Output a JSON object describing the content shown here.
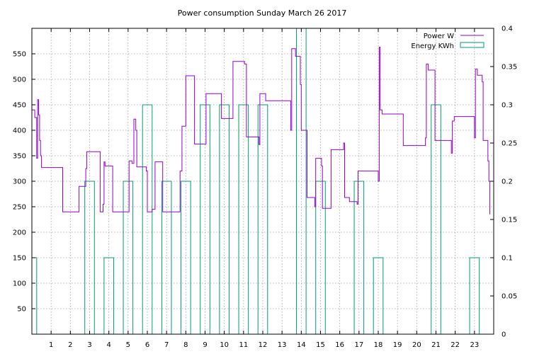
{
  "chart_data": {
    "type": "line",
    "title": "Power consumption Sunday March 26 2017",
    "xlabel": "",
    "ylabel": "",
    "xlim": [
      0,
      24
    ],
    "ylim": [
      0,
      600
    ],
    "y2lim": [
      0,
      0.4
    ],
    "grid": true,
    "legend_position": "top-right",
    "x_ticks": [
      1,
      2,
      3,
      4,
      5,
      6,
      7,
      8,
      9,
      10,
      11,
      12,
      13,
      14,
      15,
      16,
      17,
      18,
      19,
      20,
      21,
      22,
      23
    ],
    "y_ticks": [
      50,
      100,
      150,
      200,
      250,
      300,
      350,
      400,
      450,
      500,
      550
    ],
    "y2_ticks": [
      "0",
      "0.05",
      "0.1",
      "0.15",
      "0.2",
      "0.25",
      "0.3",
      "0.35",
      "0.4"
    ],
    "series": [
      {
        "name": "Power W",
        "axis": "left",
        "color": "#9400d3",
        "points": [
          [
            0.0,
            440
          ],
          [
            0.15,
            440
          ],
          [
            0.15,
            425
          ],
          [
            0.25,
            425
          ],
          [
            0.25,
            345
          ],
          [
            0.3,
            345
          ],
          [
            0.3,
            460
          ],
          [
            0.35,
            460
          ],
          [
            0.35,
            430
          ],
          [
            0.4,
            430
          ],
          [
            0.4,
            380
          ],
          [
            0.45,
            380
          ],
          [
            0.45,
            350
          ],
          [
            0.5,
            350
          ],
          [
            0.5,
            327
          ],
          [
            1.6,
            327
          ],
          [
            1.6,
            240
          ],
          [
            2.45,
            240
          ],
          [
            2.45,
            290
          ],
          [
            2.8,
            290
          ],
          [
            2.8,
            325
          ],
          [
            2.85,
            325
          ],
          [
            2.85,
            358
          ],
          [
            3.55,
            358
          ],
          [
            3.55,
            240
          ],
          [
            3.7,
            240
          ],
          [
            3.7,
            255
          ],
          [
            3.75,
            255
          ],
          [
            3.75,
            338
          ],
          [
            3.8,
            338
          ],
          [
            3.8,
            330
          ],
          [
            4.2,
            330
          ],
          [
            4.2,
            240
          ],
          [
            5.05,
            240
          ],
          [
            5.05,
            340
          ],
          [
            5.2,
            340
          ],
          [
            5.2,
            335
          ],
          [
            5.3,
            335
          ],
          [
            5.3,
            422
          ],
          [
            5.4,
            422
          ],
          [
            5.4,
            400
          ],
          [
            5.45,
            400
          ],
          [
            5.45,
            328
          ],
          [
            5.95,
            328
          ],
          [
            5.95,
            320
          ],
          [
            6.0,
            320
          ],
          [
            6.0,
            240
          ],
          [
            6.25,
            240
          ],
          [
            6.25,
            245
          ],
          [
            6.4,
            245
          ],
          [
            6.4,
            338
          ],
          [
            6.8,
            338
          ],
          [
            6.8,
            240
          ],
          [
            7.7,
            240
          ],
          [
            7.7,
            320
          ],
          [
            7.8,
            320
          ],
          [
            7.8,
            408
          ],
          [
            8.0,
            408
          ],
          [
            8.0,
            507
          ],
          [
            8.45,
            507
          ],
          [
            8.45,
            373
          ],
          [
            9.05,
            373
          ],
          [
            9.05,
            472
          ],
          [
            9.85,
            472
          ],
          [
            9.85,
            423
          ],
          [
            10.45,
            423
          ],
          [
            10.45,
            535
          ],
          [
            11.05,
            535
          ],
          [
            11.05,
            530
          ],
          [
            11.15,
            530
          ],
          [
            11.15,
            387
          ],
          [
            11.8,
            387
          ],
          [
            11.8,
            372
          ],
          [
            11.85,
            372
          ],
          [
            11.85,
            472
          ],
          [
            12.15,
            472
          ],
          [
            12.15,
            458
          ],
          [
            13.45,
            458
          ],
          [
            13.45,
            400
          ],
          [
            13.5,
            400
          ],
          [
            13.5,
            560
          ],
          [
            13.7,
            560
          ],
          [
            13.7,
            545
          ],
          [
            13.95,
            545
          ],
          [
            13.95,
            490
          ],
          [
            14.0,
            490
          ],
          [
            14.0,
            400
          ],
          [
            14.3,
            400
          ],
          [
            14.3,
            268
          ],
          [
            14.7,
            268
          ],
          [
            14.7,
            250
          ],
          [
            14.75,
            250
          ],
          [
            14.75,
            345
          ],
          [
            15.05,
            345
          ],
          [
            15.05,
            330
          ],
          [
            15.1,
            330
          ],
          [
            15.1,
            247
          ],
          [
            15.55,
            247
          ],
          [
            15.55,
            362
          ],
          [
            16.2,
            362
          ],
          [
            16.2,
            375
          ],
          [
            16.25,
            375
          ],
          [
            16.25,
            268
          ],
          [
            16.5,
            268
          ],
          [
            16.5,
            260
          ],
          [
            16.9,
            260
          ],
          [
            16.9,
            255
          ],
          [
            16.95,
            255
          ],
          [
            16.95,
            320
          ],
          [
            18.0,
            320
          ],
          [
            18.0,
            300
          ],
          [
            18.05,
            300
          ],
          [
            18.05,
            563
          ],
          [
            18.1,
            563
          ],
          [
            18.1,
            440
          ],
          [
            18.2,
            440
          ],
          [
            18.2,
            432
          ],
          [
            19.3,
            432
          ],
          [
            19.3,
            370
          ],
          [
            20.45,
            370
          ],
          [
            20.45,
            385
          ],
          [
            20.5,
            385
          ],
          [
            20.5,
            530
          ],
          [
            20.6,
            530
          ],
          [
            20.6,
            518
          ],
          [
            20.95,
            518
          ],
          [
            20.95,
            380
          ],
          [
            21.8,
            380
          ],
          [
            21.8,
            355
          ],
          [
            21.85,
            355
          ],
          [
            21.85,
            418
          ],
          [
            21.95,
            418
          ],
          [
            21.95,
            427
          ],
          [
            23.0,
            427
          ],
          [
            23.0,
            385
          ],
          [
            23.05,
            385
          ],
          [
            23.05,
            520
          ],
          [
            23.15,
            520
          ],
          [
            23.15,
            508
          ],
          [
            23.4,
            508
          ],
          [
            23.4,
            495
          ],
          [
            23.45,
            495
          ],
          [
            23.45,
            380
          ],
          [
            23.7,
            380
          ],
          [
            23.7,
            340
          ],
          [
            23.75,
            340
          ],
          [
            23.75,
            300
          ],
          [
            23.8,
            300
          ],
          [
            23.8,
            235
          ]
        ]
      },
      {
        "name": "Energy KWh",
        "axis": "right",
        "color": "#009e73",
        "type": "bar",
        "bars": [
          {
            "x0": 0.0,
            "x1": 0.25,
            "value": 0.1
          },
          {
            "x0": 2.75,
            "x1": 3.25,
            "value": 0.2
          },
          {
            "x0": 3.75,
            "x1": 4.25,
            "value": 0.1
          },
          {
            "x0": 4.75,
            "x1": 5.25,
            "value": 0.2
          },
          {
            "x0": 5.75,
            "x1": 6.25,
            "value": 0.3
          },
          {
            "x0": 6.75,
            "x1": 7.25,
            "value": 0.2
          },
          {
            "x0": 7.75,
            "x1": 8.25,
            "value": 0.2
          },
          {
            "x0": 8.75,
            "x1": 9.25,
            "value": 0.3
          },
          {
            "x0": 9.75,
            "x1": 10.25,
            "value": 0.3
          },
          {
            "x0": 10.75,
            "x1": 11.25,
            "value": 0.3
          },
          {
            "x0": 11.75,
            "x1": 12.25,
            "value": 0.3
          },
          {
            "x0": 13.75,
            "x1": 14.25,
            "value": 0.4
          },
          {
            "x0": 14.75,
            "x1": 15.25,
            "value": 0.2
          },
          {
            "x0": 16.75,
            "x1": 17.25,
            "value": 0.2
          },
          {
            "x0": 17.75,
            "x1": 18.25,
            "value": 0.1
          },
          {
            "x0": 20.75,
            "x1": 21.25,
            "value": 0.3
          },
          {
            "x0": 22.75,
            "x1": 23.25,
            "value": 0.1
          }
        ]
      }
    ]
  }
}
